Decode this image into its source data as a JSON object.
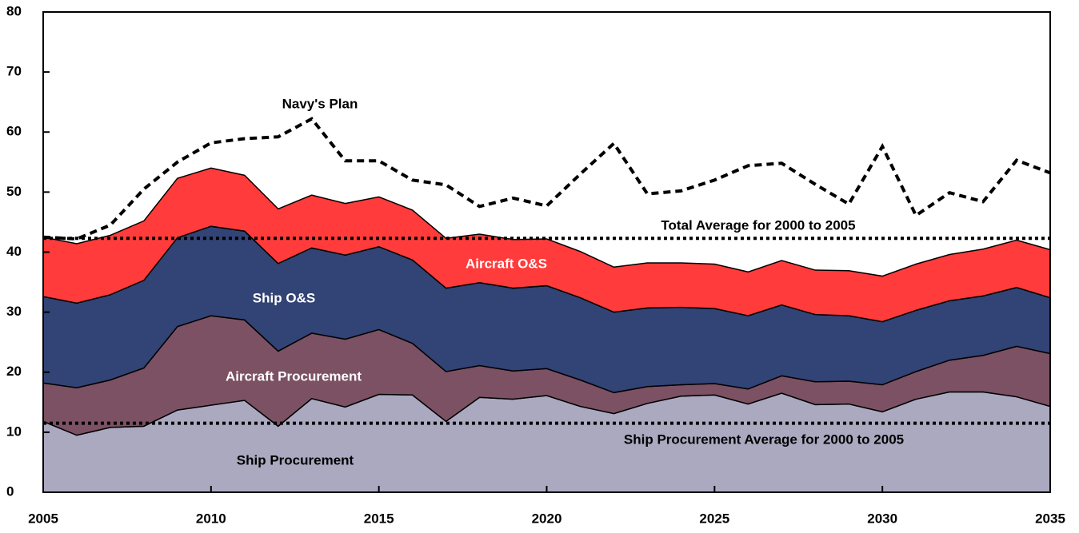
{
  "chart_data": {
    "type": "stacked_area",
    "x": [
      2005,
      2006,
      2007,
      2008,
      2009,
      2010,
      2011,
      2012,
      2013,
      2014,
      2015,
      2016,
      2017,
      2018,
      2019,
      2020,
      2021,
      2022,
      2023,
      2024,
      2025,
      2026,
      2027,
      2028,
      2029,
      2030,
      2031,
      2032,
      2033,
      2034,
      2035
    ],
    "xlim": [
      2005,
      2035
    ],
    "xticks": [
      2005,
      2010,
      2015,
      2020,
      2025,
      2030,
      2035
    ],
    "ylim": [
      0,
      80
    ],
    "yticks": [
      0,
      10,
      20,
      30,
      40,
      50,
      60,
      70,
      80
    ],
    "series": [
      {
        "name": "Ship Procurement",
        "color": "#aba9c0",
        "values": [
          11.8,
          9.5,
          10.8,
          11.0,
          13.7,
          14.5,
          15.3,
          11.0,
          15.6,
          14.2,
          16.3,
          16.2,
          11.8,
          15.8,
          15.5,
          16.1,
          14.3,
          13.1,
          14.8,
          16.0,
          16.2,
          14.7,
          16.5,
          14.6,
          14.7,
          13.4,
          15.5,
          16.7,
          16.7,
          15.9,
          14.3
        ]
      },
      {
        "name": "Aircraft Procurement",
        "color": "#7b5163",
        "values": [
          6.4,
          7.9,
          7.9,
          9.7,
          13.9,
          14.9,
          13.4,
          12.5,
          10.9,
          11.3,
          10.8,
          8.6,
          8.3,
          5.3,
          4.7,
          4.5,
          4.4,
          3.5,
          2.8,
          1.9,
          1.9,
          2.5,
          2.9,
          3.8,
          3.8,
          4.5,
          4.6,
          5.3,
          6.1,
          8.4,
          8.8
        ]
      },
      {
        "name": "Ship O&S",
        "color": "#324375",
        "values": [
          14.4,
          14.1,
          14.2,
          14.6,
          14.8,
          14.9,
          14.8,
          14.6,
          14.2,
          14.0,
          13.8,
          13.9,
          13.9,
          13.8,
          13.8,
          13.8,
          13.7,
          13.4,
          13.1,
          12.9,
          12.5,
          12.2,
          11.8,
          11.2,
          10.9,
          10.5,
          10.2,
          9.9,
          9.9,
          9.8,
          9.3
        ]
      },
      {
        "name": "Aircraft O&S",
        "color": "#ff3b3b",
        "values": [
          9.9,
          9.9,
          9.9,
          9.9,
          9.9,
          9.7,
          9.3,
          9.1,
          8.8,
          8.6,
          8.3,
          8.3,
          8.3,
          8.1,
          8.1,
          7.8,
          7.7,
          7.5,
          7.5,
          7.4,
          7.4,
          7.3,
          7.4,
          7.4,
          7.5,
          7.6,
          7.7,
          7.7,
          7.8,
          7.9,
          8.0
        ]
      }
    ],
    "line_series": {
      "name": "Navy's Plan",
      "color": "#000000",
      "values": [
        42.5,
        42.2,
        44.5,
        50.5,
        55.0,
        58.2,
        58.9,
        59.2,
        62.2,
        55.2,
        55.2,
        52.0,
        51.2,
        47.6,
        49.0,
        47.7,
        53.0,
        58.1,
        49.7,
        50.2,
        52.0,
        54.4,
        54.8,
        51.3,
        48.0,
        57.6,
        46.1,
        49.9,
        48.4,
        55.3,
        53.2
      ]
    },
    "reference_lines": [
      {
        "label": "Total Average for 2000 to 2005",
        "value": 42.3
      },
      {
        "label": "Ship Procurement Average for 2000 to 2005",
        "value": 11.5
      }
    ]
  }
}
